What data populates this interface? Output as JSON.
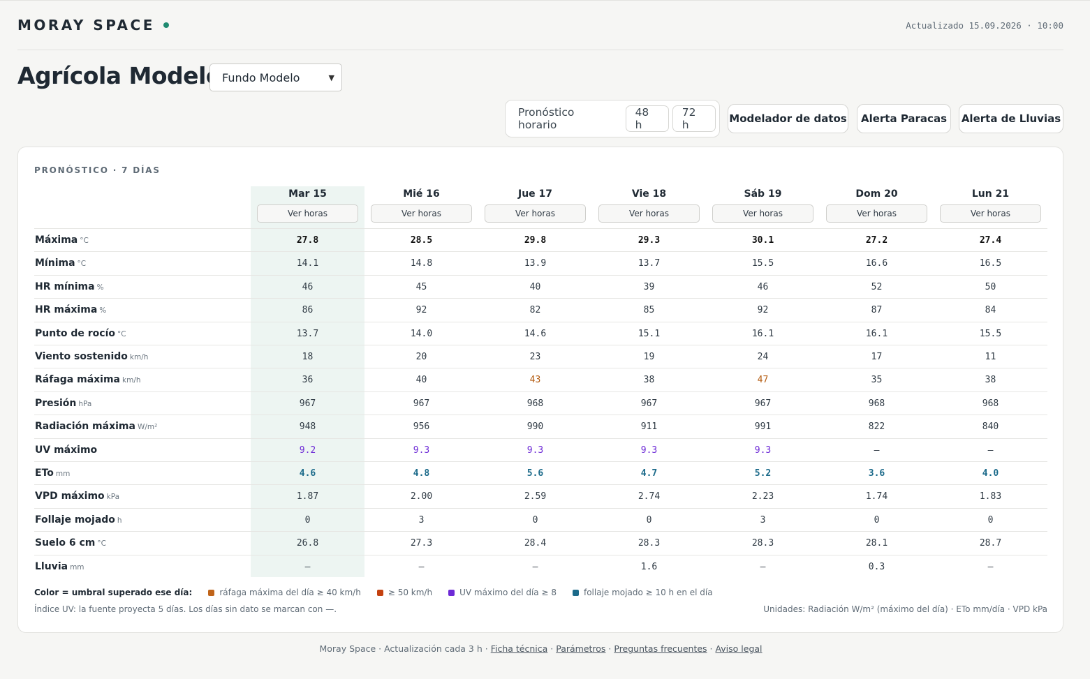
{
  "app": {
    "brand": "MORAY SPACE",
    "updated": "Actualizado 15.09.2026 · 10:00",
    "title": "Agrícola Modelo",
    "farm_select": "Fundo Modelo"
  },
  "toolbar": {
    "forecast_label": "Pronóstico horario",
    "btn_48": "48 h",
    "btn_72": "72 h",
    "modeler": "Modelador de datos",
    "alert_paracas": "Alerta Paracas",
    "alert_rain": "Alerta de Lluvias"
  },
  "forecast": {
    "title": "PRONÓSTICO · 7 DÍAS",
    "ver_horas": "Ver horas",
    "days": [
      "Mar 15",
      "Mié 16",
      "Jue 17",
      "Vie 18",
      "Sáb 19",
      "Dom 20",
      "Lun 21"
    ],
    "rows": [
      {
        "label": "Máxima",
        "unit": "°C",
        "values": [
          "27.8",
          "28.5",
          "29.8",
          "29.3",
          "30.1",
          "27.2",
          "27.4"
        ]
      },
      {
        "label": "Mínima",
        "unit": "°C",
        "values": [
          "14.1",
          "14.8",
          "13.9",
          "13.7",
          "15.5",
          "16.6",
          "16.5"
        ]
      },
      {
        "label": "HR mínima",
        "unit": "%",
        "values": [
          "46",
          "45",
          "40",
          "39",
          "46",
          "52",
          "50"
        ]
      },
      {
        "label": "HR máxima",
        "unit": "%",
        "values": [
          "86",
          "92",
          "82",
          "85",
          "92",
          "87",
          "84"
        ]
      },
      {
        "label": "Punto de rocío",
        "unit": "°C",
        "values": [
          "13.7",
          "14.0",
          "14.6",
          "15.1",
          "16.1",
          "16.1",
          "15.5"
        ]
      },
      {
        "label": "Viento sostenido",
        "unit": "km/h",
        "values": [
          "18",
          "20",
          "23",
          "19",
          "24",
          "17",
          "11"
        ]
      },
      {
        "label": "Ráfaga máxima",
        "unit": "km/h",
        "values": [
          "36",
          "40",
          "43",
          "38",
          "47",
          "35",
          "38"
        ]
      },
      {
        "label": "Presión",
        "unit": "hPa",
        "values": [
          "967",
          "967",
          "968",
          "967",
          "967",
          "968",
          "968"
        ]
      },
      {
        "label": "Radiación máxima",
        "unit": "W/m²",
        "values": [
          "948",
          "956",
          "990",
          "911",
          "991",
          "822",
          "840"
        ]
      },
      {
        "label": "UV máximo",
        "unit": "",
        "values": [
          "9.2",
          "9.3",
          "9.3",
          "9.3",
          "9.3",
          "—",
          "—"
        ]
      },
      {
        "label": "ETo",
        "unit": "mm",
        "values": [
          "4.6",
          "4.8",
          "5.6",
          "4.7",
          "5.2",
          "3.6",
          "4.0"
        ]
      },
      {
        "label": "VPD máximo",
        "unit": "kPa",
        "values": [
          "1.87",
          "2.00",
          "2.59",
          "2.74",
          "2.23",
          "1.74",
          "1.83"
        ]
      },
      {
        "label": "Follaje mojado",
        "unit": "h",
        "values": [
          "0",
          "3",
          "0",
          "0",
          "3",
          "0",
          "0"
        ]
      },
      {
        "label": "Suelo 6 cm",
        "unit": "°C",
        "values": [
          "26.8",
          "27.3",
          "28.4",
          "28.3",
          "28.3",
          "28.1",
          "28.7"
        ]
      },
      {
        "label": "Lluvia",
        "unit": "mm",
        "values": [
          "—",
          "—",
          "—",
          "1.6",
          "—",
          "0.3",
          "—"
        ]
      }
    ]
  },
  "legend": {
    "lead": "Color = umbral superado ese día:",
    "items": [
      {
        "text": "ráfaga máxima del día ≥ 40 km/h",
        "color": "#c0641a"
      },
      {
        "text": "≥ 50 km/h",
        "color": "#c4410f"
      },
      {
        "text": "UV máximo del día ≥ 8",
        "color": "#6d2ad6"
      },
      {
        "text": "follaje mojado ≥ 10 h en el día",
        "color": "#1b6a8a"
      }
    ],
    "note_left": "Índice UV: la fuente proyecta 5 días. Los días sin dato se marcan con —.",
    "note_right": "Unidades: Radiación W/m² (máximo del día) · ETo mm/día · VPD kPa"
  },
  "footer": {
    "prefix": "Moray Space · Actualización cada 3 h ·",
    "links": [
      "Ficha técnica",
      "Parámetros",
      "Preguntas frecuentes",
      "Aviso legal"
    ]
  },
  "colors": {
    "accent": "#1f8a70",
    "today_bg": "#edf5f2",
    "warn": "#b35a0e",
    "uv": "#6d2ad6",
    "eto": "#1b6a8a"
  }
}
